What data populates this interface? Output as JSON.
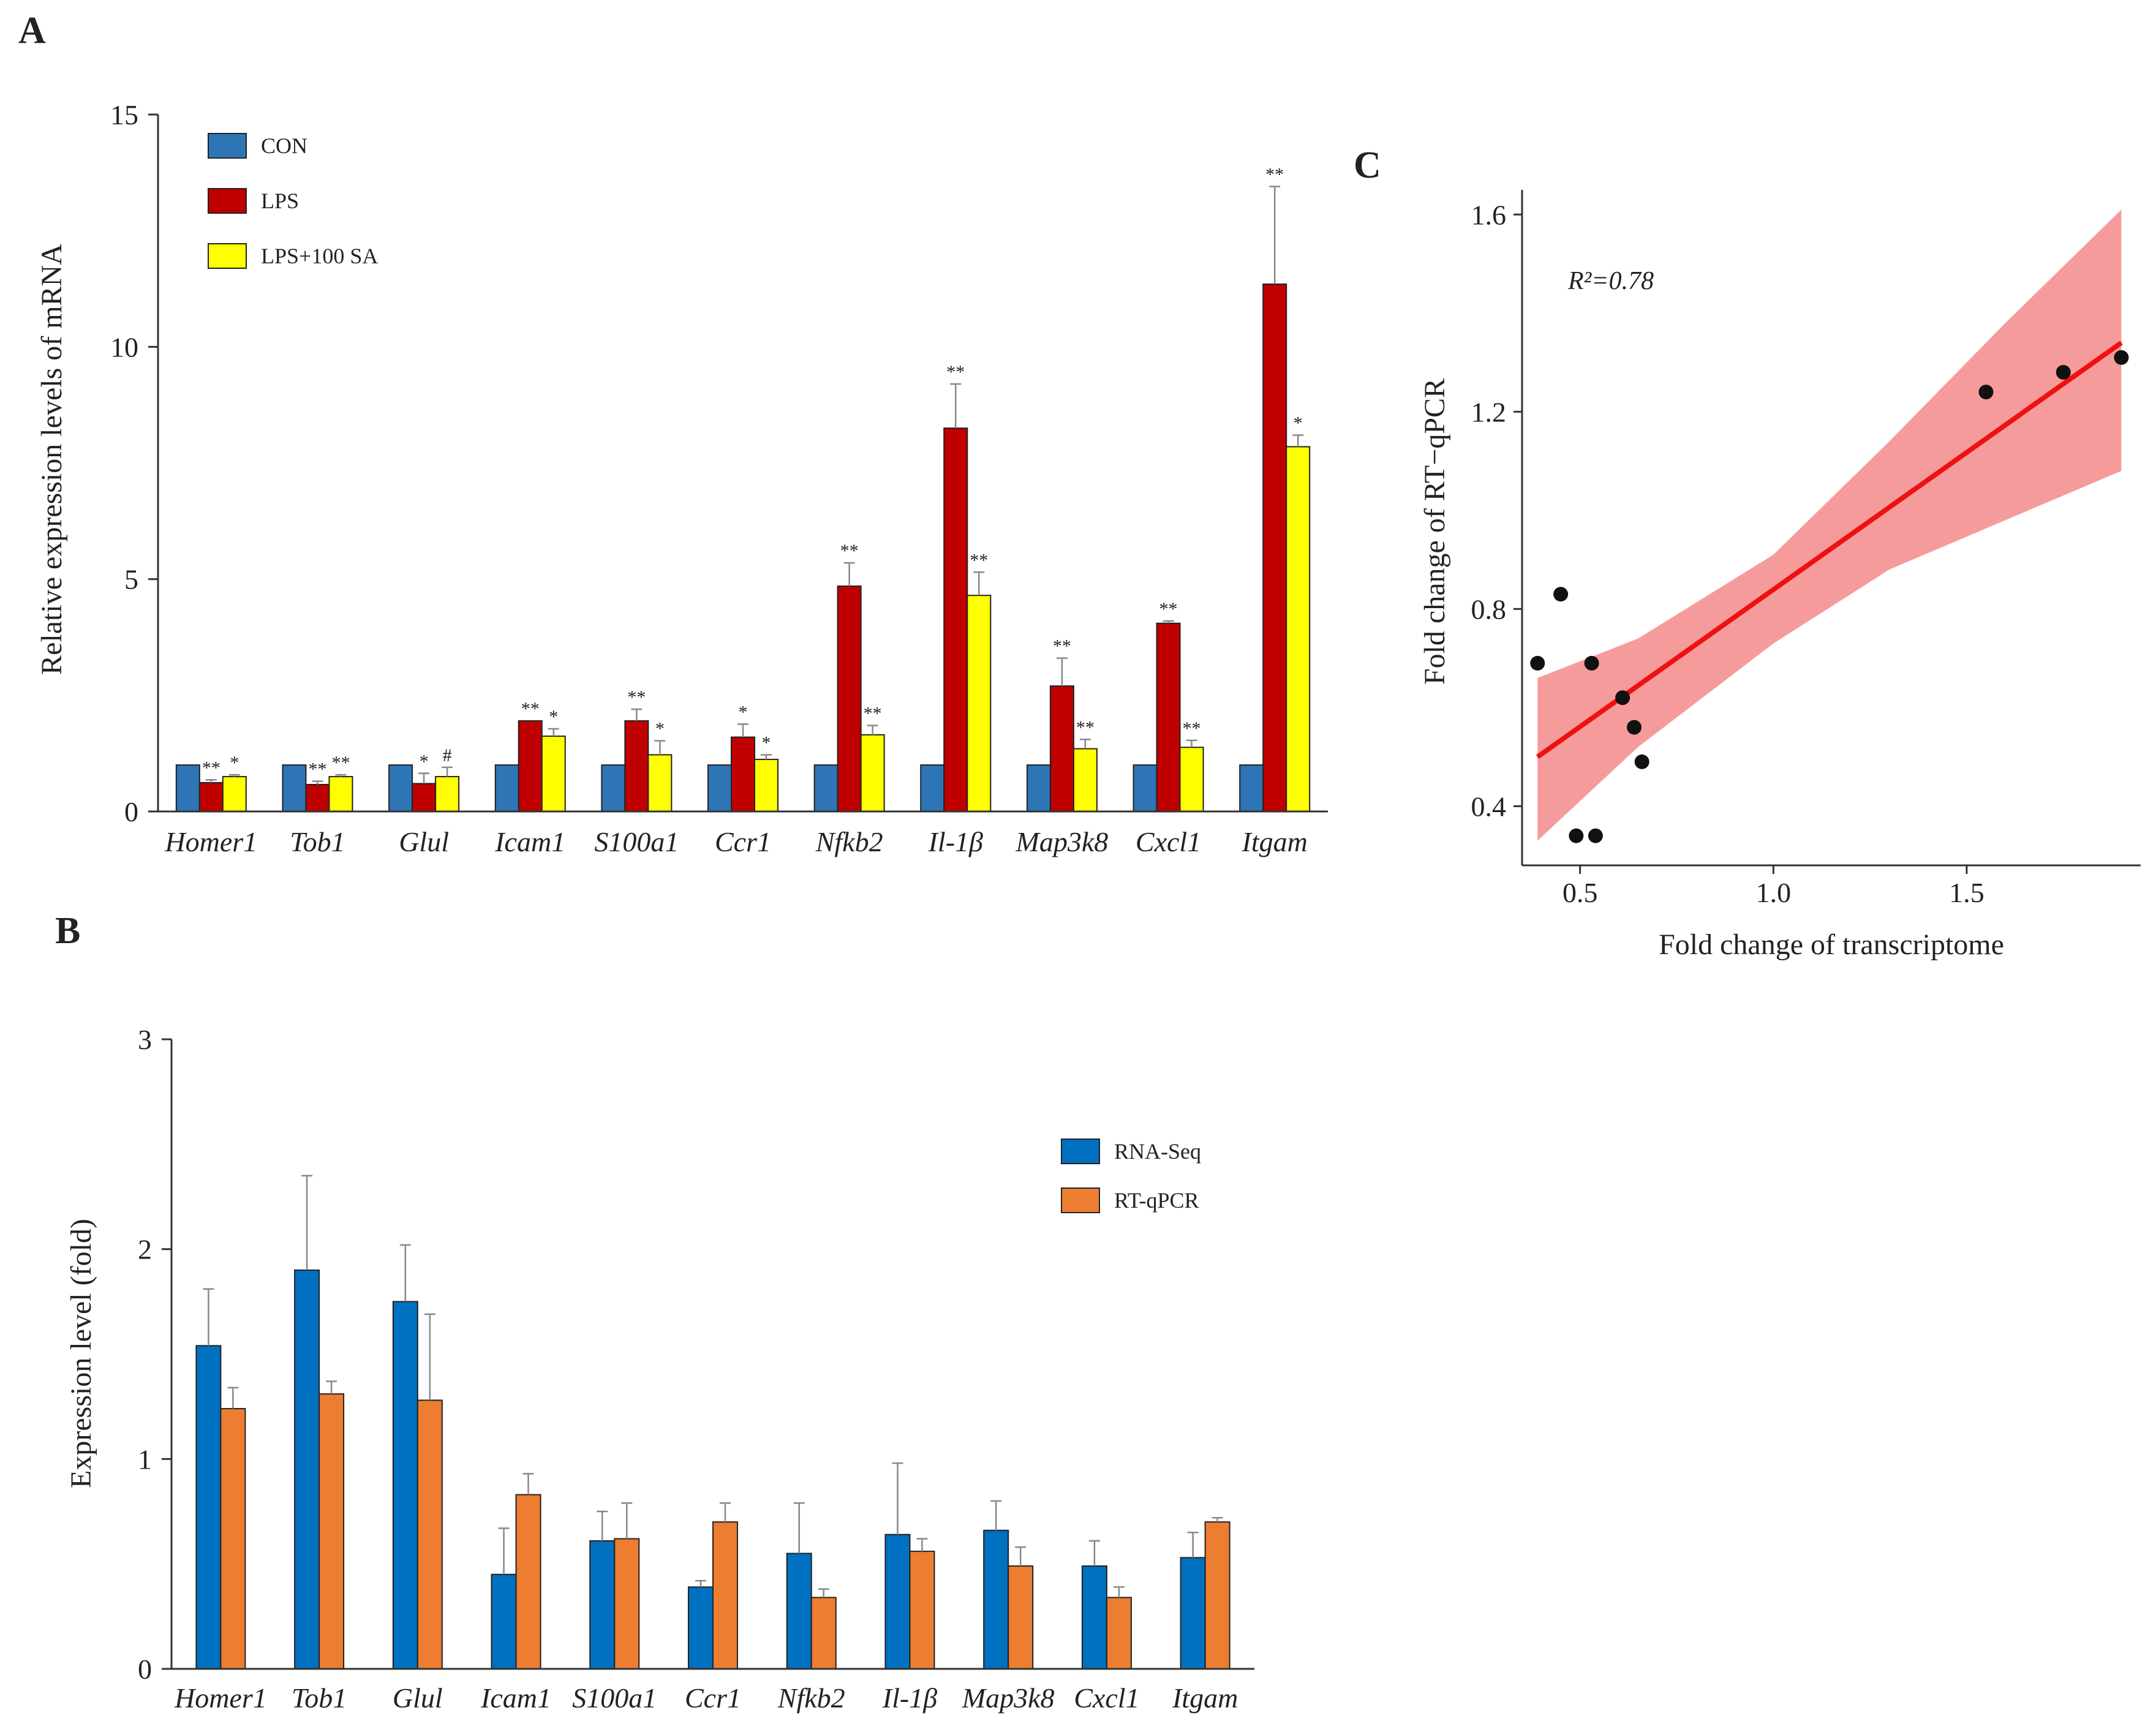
{
  "panels": {
    "A": "A",
    "B": "B",
    "C": "C"
  },
  "chart_data": [
    {
      "id": "A",
      "type": "bar",
      "ylabel": "Relative expression levels of mRNA",
      "ylim": [
        0,
        15
      ],
      "yticks": [
        "0",
        "5",
        "10",
        "15"
      ],
      "categories": [
        "Homer1",
        "Tob1",
        "Glul",
        "Icam1",
        "S100a1",
        "Ccr1",
        "Nfkb2",
        "Il-1β",
        "Map3k8",
        "Cxcl1",
        "Itgam"
      ],
      "legend_position": "top-left",
      "series": [
        {
          "name": "CON",
          "color": "#2e75b6",
          "values": [
            1,
            1,
            1,
            1,
            1,
            1,
            1,
            1,
            1,
            1,
            1
          ],
          "errors": [
            0,
            0,
            0,
            0,
            0,
            0,
            0,
            0,
            0,
            0,
            0
          ],
          "marks": [
            "",
            "",
            "",
            "",
            "",
            "",
            "",
            "",
            "",
            "",
            ""
          ]
        },
        {
          "name": "LPS",
          "color": "#c00000",
          "values": [
            0.62,
            0.58,
            0.6,
            1.95,
            1.95,
            1.6,
            4.85,
            8.25,
            2.7,
            4.05,
            11.35
          ],
          "errors": [
            0.06,
            0.07,
            0.22,
            0.0,
            0.25,
            0.28,
            0.5,
            0.95,
            0.6,
            0.05,
            2.1
          ],
          "marks": [
            "**",
            "**",
            "*",
            "**",
            "**",
            "*",
            "**",
            "**",
            "**",
            "**",
            "**"
          ]
        },
        {
          "name": "LPS+100 SA",
          "color": "#ffff00",
          "values": [
            0.75,
            0.75,
            0.75,
            1.62,
            1.22,
            1.12,
            1.65,
            4.65,
            1.35,
            1.38,
            7.85
          ],
          "errors": [
            0.04,
            0.04,
            0.2,
            0.16,
            0.3,
            0.1,
            0.2,
            0.5,
            0.2,
            0.15,
            0.25
          ],
          "marks": [
            "*",
            "**",
            "#",
            "*",
            "*",
            "*",
            "**",
            "**",
            "**",
            "**",
            "*"
          ]
        }
      ]
    },
    {
      "id": "B",
      "type": "bar",
      "ylabel": "Expression level (fold)",
      "ylim": [
        0,
        3
      ],
      "yticks": [
        "0",
        "1",
        "2",
        "3"
      ],
      "categories": [
        "Homer1",
        "Tob1",
        "Glul",
        "Icam1",
        "S100a1",
        "Ccr1",
        "Nfkb2",
        "Il-1β",
        "Map3k8",
        "Cxcl1",
        "Itgam"
      ],
      "legend_position": "top-right",
      "series": [
        {
          "name": "RNA-Seq",
          "color": "#0070c0",
          "values": [
            1.54,
            1.9,
            1.75,
            0.45,
            0.61,
            0.39,
            0.55,
            0.64,
            0.66,
            0.49,
            0.53
          ],
          "errors": [
            0.27,
            0.45,
            0.27,
            0.22,
            0.14,
            0.03,
            0.24,
            0.34,
            0.14,
            0.12,
            0.12
          ]
        },
        {
          "name": "RT-qPCR",
          "color": "#ed7d31",
          "values": [
            1.24,
            1.31,
            1.28,
            0.83,
            0.62,
            0.7,
            0.34,
            0.56,
            0.49,
            0.34,
            0.7
          ],
          "errors": [
            0.1,
            0.06,
            0.41,
            0.1,
            0.17,
            0.09,
            0.04,
            0.06,
            0.09,
            0.05,
            0.02
          ]
        }
      ]
    },
    {
      "id": "C",
      "type": "scatter",
      "xlabel": "Fold change of transcriptome",
      "ylabel": "Fold change of RT−qPCR",
      "xlim": [
        0.35,
        1.95
      ],
      "ylim": [
        0.28,
        1.65
      ],
      "xticks": [
        0.5,
        1.0,
        1.5
      ],
      "xtick_labels": [
        "0.5",
        "1.0",
        "1.5"
      ],
      "yticks": [
        0.4,
        0.8,
        1.2,
        1.6
      ],
      "ytick_labels": [
        "0.4",
        "0.8",
        "1.2",
        "1.6"
      ],
      "annotation": "R²=0.78",
      "points": [
        {
          "x": 0.39,
          "y": 0.69
        },
        {
          "x": 0.45,
          "y": 0.83
        },
        {
          "x": 0.49,
          "y": 0.34
        },
        {
          "x": 0.53,
          "y": 0.69
        },
        {
          "x": 0.54,
          "y": 0.34
        },
        {
          "x": 0.61,
          "y": 0.62
        },
        {
          "x": 0.64,
          "y": 0.56
        },
        {
          "x": 0.66,
          "y": 0.49
        },
        {
          "x": 1.55,
          "y": 1.24
        },
        {
          "x": 1.75,
          "y": 1.28
        },
        {
          "x": 1.9,
          "y": 1.31
        }
      ],
      "fit": {
        "x": [
          0.39,
          1.9
        ],
        "y": [
          0.5,
          1.34
        ],
        "color": "#ee1111"
      },
      "ci_band": {
        "x": [
          0.39,
          0.65,
          1.0,
          1.3,
          1.6,
          1.9
        ],
        "lower": [
          0.33,
          0.52,
          0.73,
          0.88,
          0.98,
          1.08
        ],
        "upper": [
          0.66,
          0.74,
          0.91,
          1.14,
          1.38,
          1.61
        ],
        "color": "#f48a8a"
      }
    }
  ]
}
